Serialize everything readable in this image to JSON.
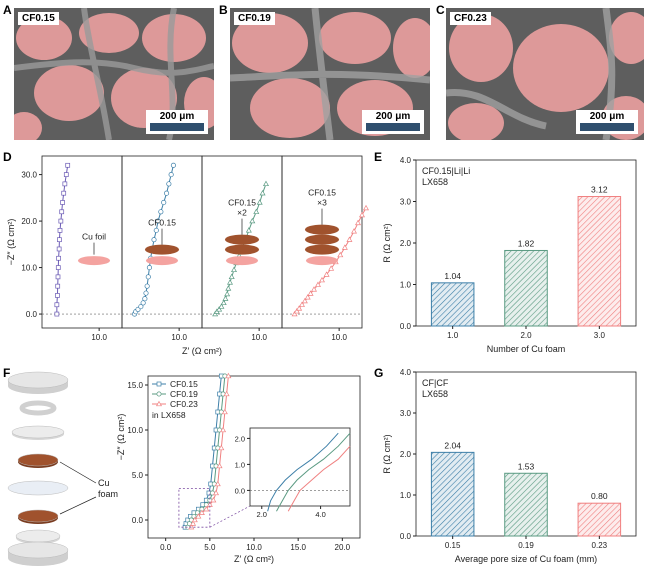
{
  "panel_letters": {
    "A": "A",
    "B": "B",
    "C": "C",
    "D": "D",
    "E": "E",
    "F": "F",
    "G": "G"
  },
  "sem": [
    {
      "label": "CF0.15",
      "scale": "200 μm"
    },
    {
      "label": "CF0.19",
      "scale": "200 μm"
    },
    {
      "label": "CF0.23",
      "scale": "200 μm"
    }
  ],
  "colors": {
    "blue": "#3d7fa8",
    "green": "#5a9a82",
    "pink": "#f08080",
    "purple": "#6b5bb5",
    "disk": "#f4a3a0",
    "foam": "#a0522d",
    "pore": "#f3a3a3",
    "frame": "#5a5a5a"
  },
  "chart_data": [
    {
      "id": "D",
      "type": "line",
      "ylabel": "−Z″ (Ω cm²)",
      "xlabel": "Z′ (Ω cm²)",
      "yticks": [
        "0.0",
        "10.0",
        "20.0",
        "30.0"
      ],
      "subplots": [
        {
          "annotation": "Cu foil",
          "xtick": "10.0",
          "foam_layers": 0,
          "points": [
            [
              2.6,
              0.0
            ],
            [
              2.6,
              2
            ],
            [
              2.7,
              4
            ],
            [
              2.75,
              6
            ],
            [
              2.8,
              8
            ],
            [
              2.85,
              10
            ],
            [
              2.9,
              12
            ],
            [
              3.0,
              14
            ],
            [
              3.05,
              16
            ],
            [
              3.15,
              18
            ],
            [
              3.3,
              20
            ],
            [
              3.45,
              22
            ],
            [
              3.6,
              24
            ],
            [
              3.8,
              26
            ],
            [
              4.0,
              28
            ],
            [
              4.25,
              30
            ],
            [
              4.5,
              32
            ]
          ]
        },
        {
          "annotation": "CF0.15",
          "xtick": "10.0",
          "foam_layers": 1,
          "points": [
            [
              2.2,
              0.0
            ],
            [
              2.4,
              0.5
            ],
            [
              2.8,
              1.0
            ],
            [
              3.3,
              1.6
            ],
            [
              3.7,
              2.4
            ],
            [
              4.0,
              3.3
            ],
            [
              4.2,
              4.5
            ],
            [
              4.4,
              6
            ],
            [
              4.6,
              8
            ],
            [
              4.8,
              10
            ],
            [
              5.0,
              12
            ],
            [
              5.3,
              14
            ],
            [
              5.6,
              16
            ],
            [
              6.0,
              18
            ],
            [
              6.3,
              20
            ],
            [
              6.8,
              22
            ],
            [
              7.3,
              24
            ],
            [
              7.8,
              26
            ],
            [
              8.2,
              28
            ],
            [
              8.6,
              30
            ],
            [
              9.0,
              32
            ]
          ]
        },
        {
          "annotation": "CF0.15\n×2",
          "xtick": "10.0",
          "foam_layers": 2,
          "points": [
            [
              2.3,
              0.0
            ],
            [
              2.6,
              0.5
            ],
            [
              3.0,
              1.0
            ],
            [
              3.4,
              1.6
            ],
            [
              3.8,
              2.4
            ],
            [
              4.1,
              3.3
            ],
            [
              4.4,
              4.3
            ],
            [
              4.6,
              5.5
            ],
            [
              4.9,
              6.8
            ],
            [
              5.2,
              8
            ],
            [
              5.6,
              9.5
            ],
            [
              6.0,
              11
            ],
            [
              6.5,
              12.5
            ],
            [
              7.0,
              14
            ],
            [
              7.6,
              16
            ],
            [
              8.2,
              18
            ],
            [
              8.8,
              20
            ],
            [
              9.5,
              22
            ],
            [
              10.1,
              24
            ],
            [
              10.6,
              26
            ],
            [
              11.2,
              28
            ]
          ]
        },
        {
          "annotation": "CF0.15\n×3",
          "xtick": "10.0",
          "foam_layers": 3,
          "points": [
            [
              2.2,
              0.0
            ],
            [
              2.6,
              0.6
            ],
            [
              3.0,
              1.2
            ],
            [
              3.5,
              2.0
            ],
            [
              4.0,
              2.8
            ],
            [
              4.5,
              3.6
            ],
            [
              5.0,
              4.4
            ],
            [
              5.6,
              5.3
            ],
            [
              6.3,
              6.3
            ],
            [
              7.0,
              7.3
            ],
            [
              7.8,
              8.5
            ],
            [
              8.6,
              9.8
            ],
            [
              9.4,
              11.2
            ],
            [
              10.2,
              12.7
            ],
            [
              11.0,
              14.3
            ],
            [
              11.8,
              16
            ],
            [
              12.6,
              17.8
            ],
            [
              13.3,
              19.6
            ],
            [
              14.0,
              21.3
            ],
            [
              14.7,
              22.8
            ]
          ]
        }
      ]
    },
    {
      "id": "E",
      "type": "bar",
      "annotation": [
        "CF0.15|Li|Li",
        "LX658"
      ],
      "ylabel": "R (Ω cm²)",
      "xlabel": "Number of Cu foam",
      "categories": [
        "1.0",
        "2.0",
        "3.0"
      ],
      "values": [
        1.04,
        1.82,
        3.12
      ],
      "value_labels": [
        "1.04",
        "1.82",
        "3.12"
      ],
      "ylim": [
        0,
        4
      ],
      "yticks": [
        "0.0",
        "1.0",
        "2.0",
        "3.0",
        "4.0"
      ]
    },
    {
      "id": "F",
      "type": "line",
      "ylabel": "−Z″ (Ω cm²)",
      "xlabel": "Z′ (Ω cm²)",
      "xticks": [
        "0.0",
        "5.0",
        "10.0",
        "15.0",
        "20.0"
      ],
      "yticks": [
        "0.0",
        "5.0",
        "10.0",
        "15.0"
      ],
      "legend": [
        "CF0.15",
        "CF0.19",
        "CF0.23"
      ],
      "legend_note": "in LX658",
      "series": [
        {
          "name": "CF0.15",
          "points": [
            [
              2.2,
              -0.8
            ],
            [
              2.3,
              -0.4
            ],
            [
              2.5,
              0
            ],
            [
              2.8,
              0.4
            ],
            [
              3.2,
              0.8
            ],
            [
              3.7,
              1.2
            ],
            [
              4.2,
              1.7
            ],
            [
              4.6,
              2.2
            ],
            [
              4.9,
              3
            ],
            [
              5.1,
              4
            ],
            [
              5.3,
              6
            ],
            [
              5.5,
              8
            ],
            [
              5.7,
              10
            ],
            [
              5.9,
              12
            ],
            [
              6.1,
              14
            ],
            [
              6.3,
              16
            ]
          ]
        },
        {
          "name": "CF0.19",
          "points": [
            [
              2.5,
              -0.8
            ],
            [
              2.7,
              -0.4
            ],
            [
              2.9,
              0
            ],
            [
              3.2,
              0.4
            ],
            [
              3.6,
              0.8
            ],
            [
              4.1,
              1.2
            ],
            [
              4.6,
              1.7
            ],
            [
              5.0,
              2.2
            ],
            [
              5.3,
              3
            ],
            [
              5.5,
              4
            ],
            [
              5.7,
              6
            ],
            [
              5.9,
              8
            ],
            [
              6.1,
              10
            ],
            [
              6.3,
              12
            ],
            [
              6.5,
              14
            ],
            [
              6.7,
              16
            ]
          ]
        },
        {
          "name": "CF0.23",
          "points": [
            [
              2.9,
              -0.8
            ],
            [
              3.1,
              -0.4
            ],
            [
              3.3,
              0
            ],
            [
              3.7,
              0.4
            ],
            [
              4.1,
              0.8
            ],
            [
              4.6,
              1.2
            ],
            [
              5.0,
              1.7
            ],
            [
              5.4,
              2.2
            ],
            [
              5.7,
              3
            ],
            [
              5.9,
              4
            ],
            [
              6.1,
              6
            ],
            [
              6.3,
              8
            ],
            [
              6.5,
              10
            ],
            [
              6.7,
              12
            ],
            [
              6.9,
              14
            ],
            [
              7.1,
              16
            ]
          ]
        }
      ],
      "inset": {
        "xticks": [
          "2.0",
          "4.0"
        ],
        "yticks": [
          "0.0",
          "1.0",
          "2.0"
        ]
      },
      "device_label": "Cu\nfoam"
    },
    {
      "id": "G",
      "type": "bar",
      "annotation": [
        "CF|CF",
        "LX658"
      ],
      "ylabel": "R (Ω cm²)",
      "xlabel": "Average pore size of Cu foam (mm)",
      "categories": [
        "0.15",
        "0.19",
        "0.23"
      ],
      "values": [
        2.04,
        1.53,
        0.8
      ],
      "value_labels": [
        "2.04",
        "1.53",
        "0.80"
      ],
      "ylim": [
        0,
        4
      ],
      "yticks": [
        "0.0",
        "1.0",
        "2.0",
        "3.0",
        "4.0"
      ]
    }
  ]
}
